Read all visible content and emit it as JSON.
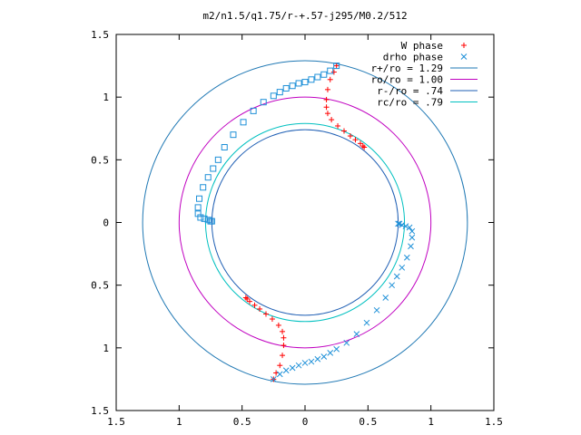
{
  "chart_data": {
    "type": "scatter",
    "title": "m2/n1.5/q1.75/r-+.57-j295/M0.2/512",
    "xlabel": "",
    "ylabel": "",
    "xlim": [
      -1.5,
      1.5
    ],
    "ylim": [
      -1.5,
      1.5
    ],
    "x_ticks": [
      -1.5,
      -1,
      -0.5,
      0,
      0.5,
      1,
      1.5
    ],
    "y_ticks": [
      -1.5,
      -1,
      -0.5,
      0,
      0.5,
      1,
      1.5
    ],
    "x_tick_labels": [
      "1.5",
      "1",
      "0.5",
      "0",
      "0.5",
      "1",
      "1.5"
    ],
    "y_tick_labels": [
      "1.5",
      "1",
      "0.5",
      "0",
      "0.5",
      "1",
      "1.5"
    ],
    "grid": false,
    "legend_position": "top-right",
    "legend": [
      {
        "label": "W phase",
        "marker": "plus",
        "color": "#ff0000"
      },
      {
        "label": "drho phase",
        "marker": "cross",
        "color": "#1e90d8"
      },
      {
        "label": "r+/ro = 1.29",
        "marker": "line",
        "color": "#1f78b4"
      },
      {
        "label": "ro/ro = 1.00",
        "marker": "line",
        "color": "#c000c0"
      },
      {
        "label": "r-/ro = .74",
        "marker": "line",
        "color": "#1f5fb4"
      },
      {
        "label": "rc/ro = .79",
        "marker": "line",
        "color": "#00c0c0"
      }
    ],
    "circles": [
      {
        "name": "r+/ro = 1.29",
        "radius": 1.29,
        "color": "#1f78b4"
      },
      {
        "name": "ro/ro = 1.00",
        "radius": 1.0,
        "color": "#c000c0"
      },
      {
        "name": "r-/ro = .74",
        "radius": 0.74,
        "color": "#1f5fb4"
      },
      {
        "name": "rc/ro = .79",
        "radius": 0.79,
        "color": "#00c0c0"
      }
    ],
    "series": [
      {
        "name": "W phase",
        "marker": "plus",
        "color": "#ff0000",
        "x": [
          0.25,
          0.23,
          0.2,
          0.18,
          0.17,
          0.17,
          0.18,
          0.21,
          0.26,
          0.31,
          0.36,
          0.4,
          0.44,
          0.46,
          0.47,
          -0.25,
          -0.23,
          -0.2,
          -0.18,
          -0.17,
          -0.17,
          -0.18,
          -0.21,
          -0.26,
          -0.31,
          -0.36,
          -0.4,
          -0.44,
          -0.46,
          -0.47
        ],
        "y": [
          1.25,
          1.2,
          1.14,
          1.06,
          0.98,
          0.92,
          0.87,
          0.82,
          0.77,
          0.73,
          0.69,
          0.66,
          0.63,
          0.61,
          0.6,
          -1.25,
          -1.2,
          -1.14,
          -1.06,
          -0.98,
          -0.92,
          -0.87,
          -0.82,
          -0.77,
          -0.73,
          -0.69,
          -0.66,
          -0.63,
          -0.61,
          -0.6
        ]
      },
      {
        "name": "drho phase (squares)",
        "marker": "square",
        "color": "#1e90d8",
        "x": [
          0.25,
          0.2,
          0.15,
          0.1,
          0.05,
          0.0,
          -0.05,
          -0.1,
          -0.15,
          -0.2,
          -0.25,
          -0.33,
          -0.41,
          -0.49,
          -0.57,
          -0.64,
          -0.69,
          -0.73,
          -0.77,
          -0.81,
          -0.84,
          -0.85,
          -0.85,
          -0.83,
          -0.8,
          -0.77,
          -0.75,
          -0.74
        ],
        "y": [
          1.25,
          1.21,
          1.18,
          1.16,
          1.14,
          1.12,
          1.11,
          1.09,
          1.07,
          1.04,
          1.01,
          0.96,
          0.89,
          0.8,
          0.7,
          0.6,
          0.5,
          0.43,
          0.36,
          0.28,
          0.19,
          0.12,
          0.07,
          0.04,
          0.03,
          0.02,
          0.01,
          0.01
        ]
      },
      {
        "name": "drho phase",
        "marker": "cross",
        "color": "#1e90d8",
        "x": [
          -0.25,
          -0.2,
          -0.15,
          -0.1,
          -0.05,
          0.0,
          0.05,
          0.1,
          0.15,
          0.2,
          0.25,
          0.33,
          0.41,
          0.49,
          0.57,
          0.64,
          0.69,
          0.73,
          0.77,
          0.81,
          0.84,
          0.85,
          0.85,
          0.83,
          0.8,
          0.77,
          0.75,
          0.74
        ],
        "y": [
          -1.25,
          -1.21,
          -1.18,
          -1.16,
          -1.14,
          -1.12,
          -1.11,
          -1.09,
          -1.07,
          -1.04,
          -1.01,
          -0.96,
          -0.89,
          -0.8,
          -0.7,
          -0.6,
          -0.5,
          -0.43,
          -0.36,
          -0.28,
          -0.19,
          -0.12,
          -0.07,
          -0.04,
          -0.03,
          -0.02,
          -0.01,
          -0.01
        ]
      }
    ]
  }
}
